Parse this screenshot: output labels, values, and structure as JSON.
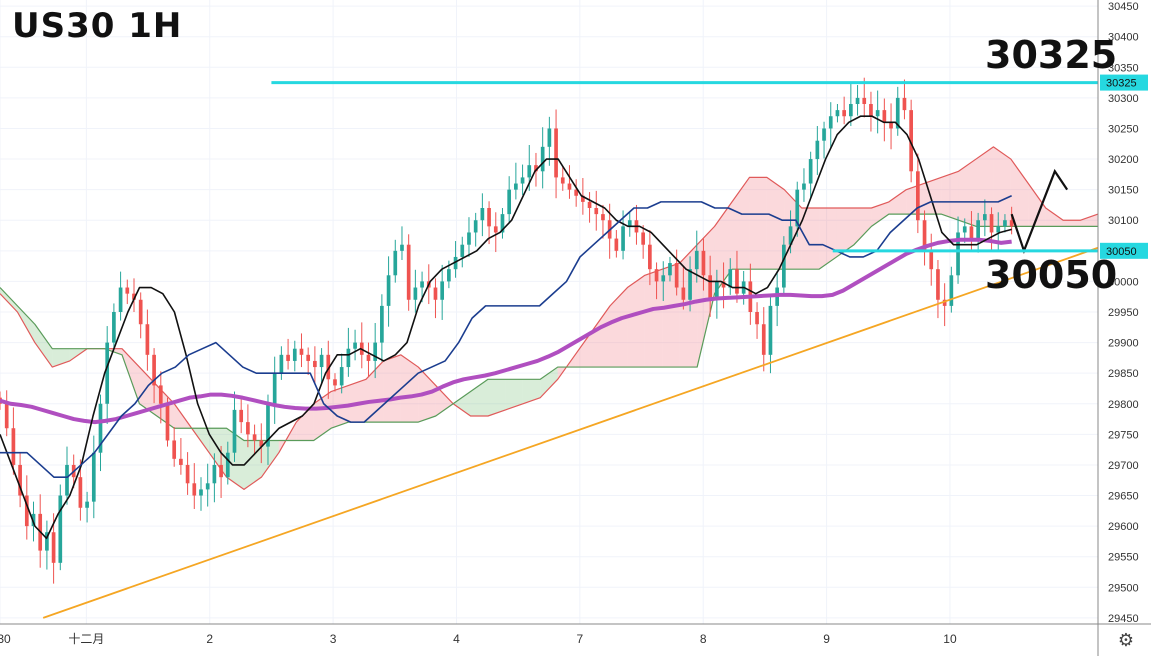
{
  "header": {
    "title": "US30 1H"
  },
  "chart_data": {
    "type": "line",
    "title": "US30 1H",
    "xlabel": "",
    "ylabel": "",
    "ylim": [
      29440,
      30460
    ],
    "y_ticks": [
      29450,
      29500,
      29550,
      29600,
      29650,
      29700,
      29750,
      29800,
      29850,
      29900,
      29950,
      30000,
      30050,
      30100,
      30150,
      30200,
      30250,
      30300,
      30350,
      30400,
      30450
    ],
    "x_ticks": [
      "30",
      "十二月",
      "2",
      "3",
      "4",
      "7",
      "8",
      "9",
      "10"
    ],
    "x_tick_positions": [
      0,
      14,
      34,
      54,
      74,
      94,
      114,
      134,
      154
    ],
    "grid": true,
    "levels": [
      {
        "label": "30325",
        "value": 30325,
        "color": "#26d8e0"
      },
      {
        "label": "30050",
        "value": 30050,
        "color": "#26d8e0"
      }
    ],
    "trendline": {
      "points": [
        [
          7,
          29450
        ],
        [
          178,
          30055
        ]
      ],
      "color": "#f5a623"
    },
    "forecast_path": [
      [
        164,
        30110
      ],
      [
        166,
        30050
      ],
      [
        171,
        30180
      ],
      [
        173,
        30150
      ]
    ],
    "series": [
      {
        "key": "price",
        "values": [
          29800,
          29760,
          29700,
          29650,
          29600,
          29620,
          29560,
          29590,
          29540,
          29650,
          29700,
          29680,
          29630,
          29640,
          29720,
          29800,
          29900,
          29950,
          29990,
          29980,
          29970,
          29930,
          29880,
          29830,
          29800,
          29740,
          29710,
          29700,
          29670,
          29650,
          29660,
          29670,
          29700,
          29680,
          29720,
          29790,
          29770,
          29750,
          29740,
          29730,
          29800,
          29850,
          29880,
          29870,
          29890,
          29880,
          29870,
          29860,
          29880,
          29840,
          29830,
          29860,
          29890,
          29900,
          29880,
          29870,
          29900,
          29960,
          30010,
          30050,
          30060,
          29970,
          29990,
          30000,
          29990,
          29970,
          30000,
          30020,
          30040,
          30060,
          30080,
          30100,
          30120,
          30090,
          30080,
          30110,
          30150,
          30160,
          30170,
          30190,
          30180,
          30220,
          30250,
          30170,
          30160,
          30150,
          30140,
          30130,
          30120,
          30110,
          30100,
          30070,
          30050,
          30090,
          30100,
          30080,
          30060,
          30020,
          30000,
          30010,
          30030,
          29990,
          29970,
          30020,
          30050,
          30010,
          29970,
          30000,
          29990,
          30020,
          29980,
          30000,
          29950,
          29930,
          29880,
          29960,
          29990,
          30060,
          30090,
          30150,
          30160,
          30200,
          30230,
          30250,
          30270,
          30280,
          30270,
          30290,
          30300,
          30290,
          30270,
          30280,
          30260,
          30250,
          30300,
          30280,
          30180,
          30100,
          30050,
          30020,
          29970,
          29960,
          30010,
          30080,
          30090,
          30070,
          30100,
          30110,
          30080,
          30090,
          30100,
          30090
        ]
      },
      {
        "key": "ma",
        "color": "#b04fc0",
        "values": [
          29805,
          29800,
          29798,
          29795,
          29790,
          29785,
          29780,
          29775,
          29772,
          29770,
          29772,
          29775,
          29780,
          29785,
          29790,
          29795,
          29800,
          29805,
          29810,
          29812,
          29815,
          29815,
          29813,
          29810,
          29806,
          29802,
          29798,
          29795,
          29793,
          29792,
          29792,
          29793,
          29795,
          29797,
          29800,
          29803,
          29805,
          29807,
          29810,
          29812,
          29815,
          29820,
          29828,
          29835,
          29840,
          29843,
          29846,
          29850,
          29855,
          29860,
          29865,
          29870,
          29877,
          29885,
          29895,
          29905,
          29915,
          29925,
          29933,
          29940,
          29945,
          29950,
          29955,
          29957,
          29960,
          29963,
          29967,
          29970,
          29972,
          29973,
          29974,
          29975,
          29976,
          29977,
          29978,
          29978,
          29977,
          29976,
          29976,
          29978,
          29985,
          29995,
          30005,
          30015,
          30025,
          30035,
          30045,
          30052,
          30058,
          30063,
          30066,
          30068,
          30068,
          30068,
          30066,
          30063,
          30065
        ]
      },
      {
        "key": "tenkan",
        "color": "#111111",
        "values": [
          29750,
          29700,
          29650,
          29600,
          29580,
          29620,
          29650,
          29700,
          29780,
          29850,
          29900,
          29950,
          29990,
          29990,
          29980,
          29950,
          29880,
          29800,
          29750,
          29720,
          29700,
          29700,
          29720,
          29740,
          29760,
          29770,
          29780,
          29800,
          29850,
          29880,
          29880,
          29890,
          29880,
          29870,
          29880,
          29900,
          29960,
          30000,
          30020,
          30030,
          30040,
          30050,
          30070,
          30080,
          30100,
          30140,
          30180,
          30200,
          30200,
          30170,
          30140,
          30130,
          30120,
          30100,
          30090,
          30090,
          30080,
          30060,
          30040,
          30020,
          30010,
          30000,
          30000,
          29990,
          29990,
          29980,
          29990,
          30020,
          30060,
          30100,
          30150,
          30200,
          30240,
          30260,
          30270,
          30270,
          30260,
          30260,
          30240,
          30200,
          30140,
          30080,
          30060,
          30060,
          30060,
          30070,
          30080,
          30085
        ]
      },
      {
        "key": "kijun",
        "color": "#1b3d8f",
        "values": [
          29720,
          29720,
          29720,
          29700,
          29680,
          29680,
          29700,
          29720,
          29750,
          29780,
          29800,
          29830,
          29850,
          29860,
          29880,
          29890,
          29900,
          29880,
          29860,
          29850,
          29850,
          29850,
          29850,
          29850,
          29800,
          29780,
          29770,
          29770,
          29790,
          29810,
          29830,
          29850,
          29860,
          29870,
          29900,
          29940,
          29960,
          29960,
          29960,
          29960,
          29960,
          29980,
          30000,
          30040,
          30060,
          30080,
          30100,
          30120,
          30120,
          30130,
          30130,
          30130,
          30130,
          30120,
          30120,
          30110,
          30110,
          30110,
          30100,
          30100,
          30060,
          30060,
          30050,
          30040,
          30040,
          30050,
          30080,
          30100,
          30120,
          30130,
          30130,
          30130,
          30130,
          30130,
          30130,
          30140
        ]
      },
      {
        "key": "span_a",
        "color": "#e05a5a",
        "values": [
          29980,
          29950,
          29900,
          29860,
          29870,
          29890,
          29890,
          29890,
          29860,
          29830,
          29800,
          29760,
          29720,
          29680,
          29660,
          29680,
          29720,
          29770,
          29800,
          29820,
          29830,
          29840,
          29870,
          29880,
          29860,
          29830,
          29800,
          29780,
          29780,
          29790,
          29800,
          29810,
          29840,
          29880,
          29920,
          29960,
          29990,
          30010,
          30020,
          30030,
          30060,
          30090,
          30130,
          30170,
          30170,
          30150,
          30120,
          30120,
          30120,
          30120,
          30120,
          30130,
          30150,
          30160,
          30170,
          30180,
          30200,
          30220,
          30200,
          30160,
          30120,
          30100,
          30100,
          30110
        ]
      },
      {
        "key": "span_b",
        "color": "#5a9b5a",
        "values": [
          29990,
          29960,
          29930,
          29890,
          29890,
          29890,
          29890,
          29880,
          29800,
          29780,
          29760,
          29760,
          29760,
          29760,
          29740,
          29740,
          29740,
          29740,
          29740,
          29760,
          29770,
          29770,
          29770,
          29770,
          29770,
          29780,
          29800,
          29820,
          29840,
          29840,
          29840,
          29840,
          29860,
          29860,
          29860,
          29860,
          29860,
          29860,
          29860,
          29860,
          29860,
          29980,
          30020,
          30020,
          30020,
          30020,
          30020,
          30020,
          30040,
          30060,
          30090,
          30110,
          30110,
          30110,
          30110,
          30100,
          30090,
          30090,
          30090,
          30090,
          30090,
          30090,
          30090,
          30090
        ]
      }
    ]
  },
  "ui": {
    "settings_icon": "gear-icon"
  }
}
